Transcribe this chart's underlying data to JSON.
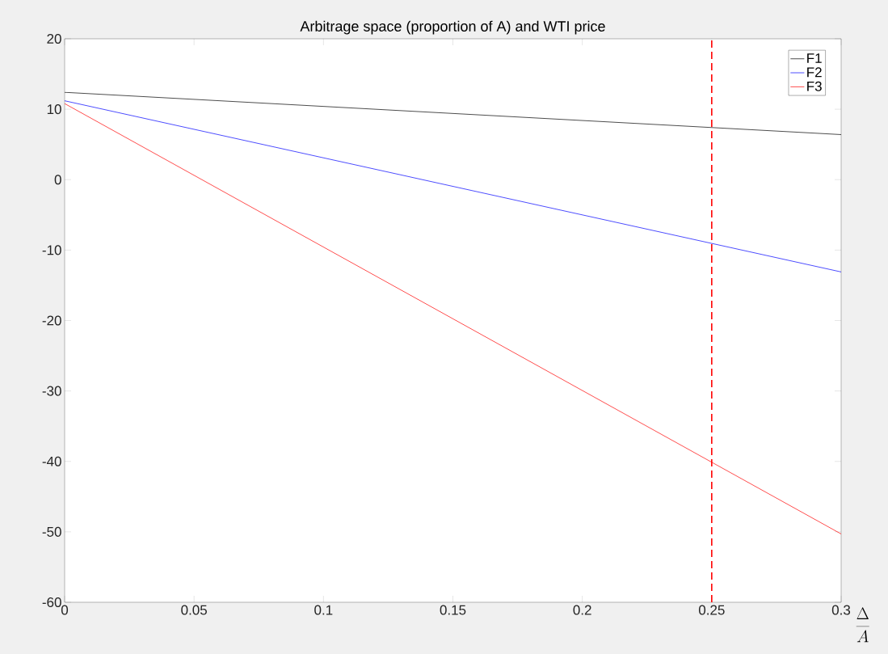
{
  "chart_data": {
    "type": "line",
    "title": "Arbitrage space (proportion of A) and WTI price",
    "xlabel": "\\frac{\\Delta}{A}",
    "x": [
      0,
      0.3
    ],
    "series": [
      {
        "name": "F1",
        "color": "#000000",
        "values": [
          12.4,
          6.4
        ]
      },
      {
        "name": "F2",
        "color": "#0000ff",
        "values": [
          11.2,
          -13.1
        ]
      },
      {
        "name": "F3",
        "color": "#ff0000",
        "values": [
          10.8,
          -50.3
        ]
      }
    ],
    "xlim": [
      0,
      0.3
    ],
    "ylim": [
      -60,
      20
    ],
    "xticks": [
      0,
      0.05,
      0.1,
      0.15,
      0.2,
      0.25,
      0.3
    ],
    "yticks": [
      -60,
      -50,
      -40,
      -30,
      -20,
      -10,
      0,
      10,
      20
    ],
    "ref_lines": [
      {
        "axis": "x",
        "value": 0.25,
        "color": "#ff0000",
        "line_style": "dashed"
      }
    ],
    "grid": false,
    "legend": "top right",
    "marker": "none",
    "line_style": "solid"
  }
}
